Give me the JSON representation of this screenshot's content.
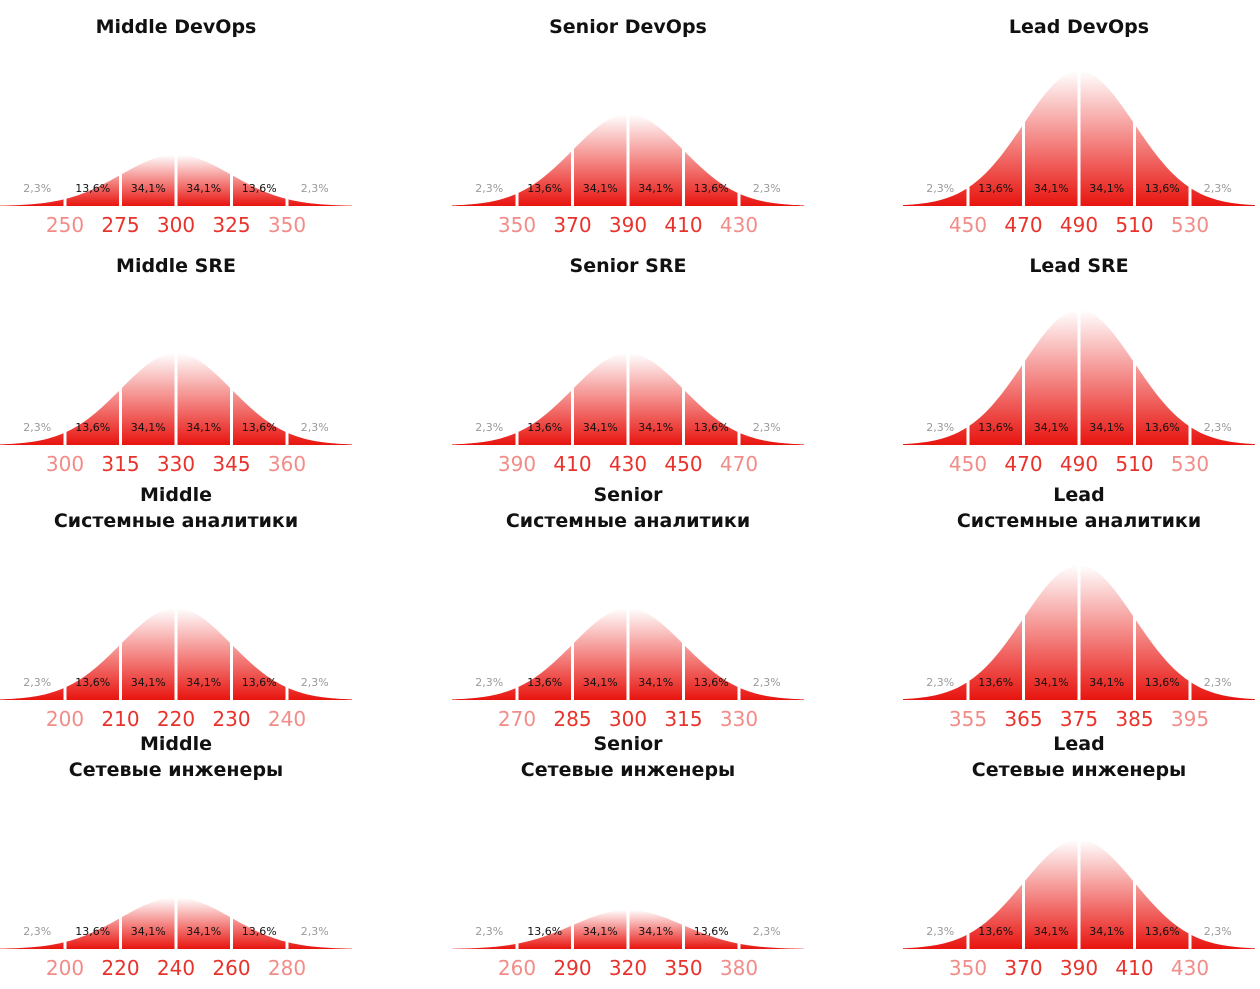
{
  "colors": {
    "curve_top": "#ffffff",
    "curve_bottom": "#e8140f",
    "divider": "#ffffff",
    "pct_inner": "#111111",
    "pct_tail": "#9a9a9a",
    "tick_center": "#e8332c",
    "tick_near": "#e8332c",
    "tick_far": "#f28c88"
  },
  "chart_data": [
    {
      "type": "area",
      "title_lines": [
        "Middle DevOps"
      ],
      "segment_labels": [
        "2,3%",
        "13,6%",
        "34,1%",
        "34,1%",
        "13,6%",
        "2,3%"
      ],
      "x_ticks": [
        "250",
        "275",
        "300",
        "325",
        "350"
      ],
      "peak_height": 0.38
    },
    {
      "type": "area",
      "title_lines": [
        "Senior DevOps"
      ],
      "segment_labels": [
        "2,3%",
        "13,6%",
        "34,1%",
        "34,1%",
        "13,6%",
        "2,3%"
      ],
      "x_ticks": [
        "350",
        "370",
        "390",
        "410",
        "430"
      ],
      "peak_height": 0.68
    },
    {
      "type": "area",
      "title_lines": [
        "Lead DevOps"
      ],
      "segment_labels": [
        "2,3%",
        "13,6%",
        "34,1%",
        "34,1%",
        "13,6%",
        "2,3%"
      ],
      "x_ticks": [
        "450",
        "470",
        "490",
        "510",
        "530"
      ],
      "peak_height": 1.0
    },
    {
      "type": "area",
      "title_lines": [
        "Middle SRE"
      ],
      "segment_labels": [
        "2,3%",
        "13,6%",
        "34,1%",
        "34,1%",
        "13,6%",
        "2,3%"
      ],
      "x_ticks": [
        "300",
        "315",
        "330",
        "345",
        "360"
      ],
      "peak_height": 0.68
    },
    {
      "type": "area",
      "title_lines": [
        "Senior SRE"
      ],
      "segment_labels": [
        "2,3%",
        "13,6%",
        "34,1%",
        "34,1%",
        "13,6%",
        "2,3%"
      ],
      "x_ticks": [
        "390",
        "410",
        "430",
        "450",
        "470"
      ],
      "peak_height": 0.68
    },
    {
      "type": "area",
      "title_lines": [
        "Lead SRE"
      ],
      "segment_labels": [
        "2,3%",
        "13,6%",
        "34,1%",
        "34,1%",
        "13,6%",
        "2,3%"
      ],
      "x_ticks": [
        "450",
        "470",
        "490",
        "510",
        "530"
      ],
      "peak_height": 1.0
    },
    {
      "type": "area",
      "title_lines": [
        "Middle",
        "Системные аналитики"
      ],
      "segment_labels": [
        "2,3%",
        "13,6%",
        "34,1%",
        "34,1%",
        "13,6%",
        "2,3%"
      ],
      "x_ticks": [
        "200",
        "210",
        "220",
        "230",
        "240"
      ],
      "peak_height": 0.68
    },
    {
      "type": "area",
      "title_lines": [
        "Senior",
        "Системные аналитики"
      ],
      "segment_labels": [
        "2,3%",
        "13,6%",
        "34,1%",
        "34,1%",
        "13,6%",
        "2,3%"
      ],
      "x_ticks": [
        "270",
        "285",
        "300",
        "315",
        "330"
      ],
      "peak_height": 0.68
    },
    {
      "type": "area",
      "title_lines": [
        "Lead",
        "Системные аналитики"
      ],
      "segment_labels": [
        "2,3%",
        "13,6%",
        "34,1%",
        "34,1%",
        "13,6%",
        "2,3%"
      ],
      "x_ticks": [
        "355",
        "365",
        "375",
        "385",
        "395"
      ],
      "peak_height": 1.0
    },
    {
      "type": "area",
      "title_lines": [
        "Middle",
        "Сетевые инженеры"
      ],
      "segment_labels": [
        "2,3%",
        "13,6%",
        "34,1%",
        "34,1%",
        "13,6%",
        "2,3%"
      ],
      "x_ticks": [
        "200",
        "220",
        "240",
        "260",
        "280"
      ],
      "peak_height": 0.38
    },
    {
      "type": "area",
      "title_lines": [
        "Senior",
        "Сетевые инженеры"
      ],
      "segment_labels": [
        "2,3%",
        "13,6%",
        "34,1%",
        "34,1%",
        "13,6%",
        "2,3%"
      ],
      "x_ticks": [
        "260",
        "290",
        "320",
        "350",
        "380"
      ],
      "peak_height": 0.29
    },
    {
      "type": "area",
      "title_lines": [
        "Lead",
        "Сетевые инженеры"
      ],
      "segment_labels": [
        "2,3%",
        "13,6%",
        "34,1%",
        "34,1%",
        "13,6%",
        "2,3%"
      ],
      "x_ticks": [
        "350",
        "370",
        "390",
        "410",
        "430"
      ],
      "peak_height": 0.81
    }
  ]
}
